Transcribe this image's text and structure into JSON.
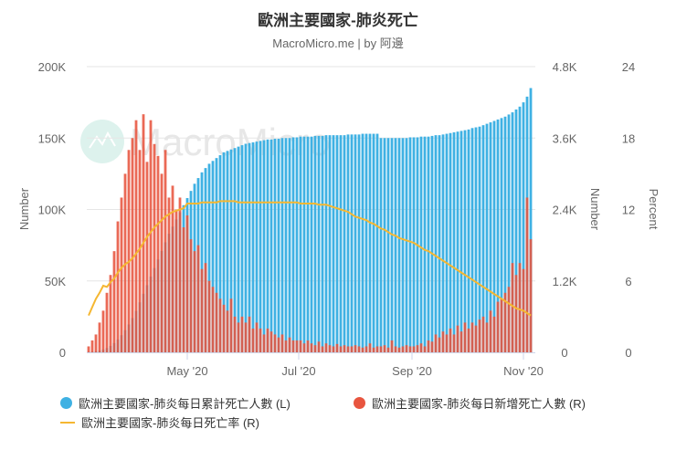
{
  "title": "歐洲主要國家-肺炎死亡",
  "subtitle": "MacroMicro.me | by 阿邊",
  "watermark": "MacroMicro",
  "chart_data": {
    "type": "bar+line",
    "title": "歐洲主要國家-肺炎死亡",
    "subtitle": "MacroMicro.me | by 阿邊",
    "grid": true,
    "legend_position": "bottom",
    "x_ticks": [
      {
        "date": "2020-05-01",
        "label": "May '20"
      },
      {
        "date": "2020-07-01",
        "label": "Jul '20"
      },
      {
        "date": "2020-09-01",
        "label": "Sep '20"
      },
      {
        "date": "2020-11-01",
        "label": "Nov '20"
      }
    ],
    "axes": {
      "left": {
        "label": "Number",
        "range": [
          0,
          200000
        ],
        "ticks": [
          "0",
          "50K",
          "100K",
          "150K",
          "200K"
        ]
      },
      "right_number": {
        "label": "Number",
        "range": [
          0,
          4800
        ],
        "ticks": [
          "0",
          "1.2K",
          "2.4K",
          "3.6K",
          "4.8K"
        ]
      },
      "right_percent": {
        "label": "Percent",
        "range": [
          0,
          24
        ],
        "ticks": [
          "0",
          "6",
          "12",
          "18",
          "24"
        ]
      }
    },
    "dates": [
      "2020-03-08",
      "2020-03-10",
      "2020-03-12",
      "2020-03-14",
      "2020-03-16",
      "2020-03-18",
      "2020-03-20",
      "2020-03-22",
      "2020-03-24",
      "2020-03-26",
      "2020-03-28",
      "2020-03-30",
      "2020-04-01",
      "2020-04-03",
      "2020-04-05",
      "2020-04-07",
      "2020-04-09",
      "2020-04-11",
      "2020-04-13",
      "2020-04-15",
      "2020-04-17",
      "2020-04-19",
      "2020-04-21",
      "2020-04-23",
      "2020-04-25",
      "2020-04-27",
      "2020-04-29",
      "2020-05-01",
      "2020-05-03",
      "2020-05-05",
      "2020-05-07",
      "2020-05-09",
      "2020-05-11",
      "2020-05-13",
      "2020-05-15",
      "2020-05-17",
      "2020-05-19",
      "2020-05-21",
      "2020-05-23",
      "2020-05-25",
      "2020-05-27",
      "2020-05-29",
      "2020-05-31",
      "2020-06-02",
      "2020-06-04",
      "2020-06-06",
      "2020-06-08",
      "2020-06-10",
      "2020-06-12",
      "2020-06-14",
      "2020-06-16",
      "2020-06-18",
      "2020-06-20",
      "2020-06-22",
      "2020-06-24",
      "2020-06-26",
      "2020-06-28",
      "2020-06-30",
      "2020-07-02",
      "2020-07-04",
      "2020-07-06",
      "2020-07-08",
      "2020-07-10",
      "2020-07-12",
      "2020-07-14",
      "2020-07-16",
      "2020-07-18",
      "2020-07-20",
      "2020-07-22",
      "2020-07-24",
      "2020-07-26",
      "2020-07-28",
      "2020-07-30",
      "2020-08-01",
      "2020-08-03",
      "2020-08-05",
      "2020-08-07",
      "2020-08-09",
      "2020-08-11",
      "2020-08-13",
      "2020-08-15",
      "2020-08-17",
      "2020-08-19",
      "2020-08-21",
      "2020-08-23",
      "2020-08-25",
      "2020-08-27",
      "2020-08-29",
      "2020-08-31",
      "2020-09-02",
      "2020-09-04",
      "2020-09-06",
      "2020-09-08",
      "2020-09-10",
      "2020-09-12",
      "2020-09-14",
      "2020-09-16",
      "2020-09-18",
      "2020-09-20",
      "2020-09-22",
      "2020-09-24",
      "2020-09-26",
      "2020-09-28",
      "2020-09-30",
      "2020-10-02",
      "2020-10-04",
      "2020-10-06",
      "2020-10-08",
      "2020-10-10",
      "2020-10-12",
      "2020-10-14",
      "2020-10-16",
      "2020-10-18",
      "2020-10-20",
      "2020-10-22",
      "2020-10-24",
      "2020-10-26",
      "2020-10-28",
      "2020-10-30",
      "2020-11-01",
      "2020-11-03",
      "2020-11-05"
    ],
    "series": [
      {
        "name": "歐洲主要國家-肺炎每日累計死亡人數 (L)",
        "type": "bar",
        "axis": "left",
        "color": "#3fb1e3",
        "values": [
          300,
          500,
          800,
          1300,
          2000,
          3000,
          4500,
          6500,
          9000,
          12000,
          15500,
          19500,
          24000,
          29000,
          35000,
          41000,
          47000,
          53000,
          59000,
          65000,
          71000,
          77000,
          83000,
          88000,
          93000,
          98000,
          103000,
          108000,
          113000,
          118000,
          122000,
          126000,
          129000,
          132000,
          134000,
          136000,
          138000,
          140000,
          141000,
          142000,
          143000,
          144000,
          145000,
          146000,
          146500,
          147000,
          147500,
          148000,
          148500,
          149000,
          149000,
          149500,
          149500,
          150000,
          150000,
          150000,
          150500,
          150500,
          151000,
          151000,
          151000,
          151000,
          151500,
          151500,
          151500,
          152000,
          152000,
          152000,
          152000,
          152000,
          152000,
          152500,
          152500,
          152500,
          152500,
          153000,
          153000,
          153000,
          153000,
          153000,
          150000,
          150000,
          150000,
          150000,
          150000,
          150000,
          150000,
          150000,
          150500,
          150500,
          150500,
          151000,
          151000,
          151000,
          151500,
          152000,
          152000,
          152500,
          153000,
          153500,
          154000,
          154500,
          155000,
          155500,
          156000,
          157000,
          157500,
          158000,
          159000,
          160000,
          161000,
          162000,
          163000,
          164000,
          165000,
          166500,
          168000,
          170000,
          172000,
          175000,
          179000,
          185000
        ]
      },
      {
        "name": "歐洲主要國家-肺炎每日新增死亡人數 (R)",
        "type": "bar",
        "axis": "right_number",
        "color": "#e8553f",
        "values": [
          100,
          200,
          300,
          500,
          700,
          1000,
          1300,
          1700,
          2200,
          2600,
          3000,
          3400,
          3600,
          3900,
          3400,
          4000,
          3200,
          3900,
          3500,
          3300,
          3000,
          3400,
          2600,
          2800,
          2400,
          2600,
          2100,
          2300,
          1900,
          1700,
          1800,
          1400,
          1500,
          1200,
          1100,
          1000,
          900,
          800,
          700,
          900,
          600,
          500,
          600,
          500,
          600,
          400,
          500,
          400,
          300,
          400,
          350,
          300,
          250,
          300,
          200,
          250,
          200,
          200,
          200,
          150,
          200,
          150,
          120,
          180,
          100,
          150,
          120,
          100,
          140,
          100,
          120,
          100,
          100,
          120,
          100,
          80,
          100,
          150,
          80,
          100,
          100,
          120,
          80,
          200,
          100,
          80,
          100,
          120,
          100,
          100,
          120,
          150,
          100,
          200,
          180,
          300,
          250,
          350,
          300,
          400,
          300,
          450,
          350,
          500,
          400,
          500,
          450,
          550,
          600,
          500,
          700,
          600,
          850,
          900,
          1000,
          1100,
          1500,
          1300,
          1500,
          1400,
          2600,
          1900
        ]
      },
      {
        "name": "歐洲主要國家-肺炎每日死亡率 (R)",
        "type": "line",
        "axis": "right_percent",
        "color": "#f5b731",
        "values": [
          3.1,
          3.8,
          4.5,
          5.0,
          5.6,
          5.5,
          5.9,
          6.2,
          6.7,
          7.1,
          7.4,
          7.6,
          7.9,
          8.3,
          8.7,
          9.2,
          9.7,
          10.1,
          10.5,
          10.8,
          11.1,
          11.4,
          11.6,
          11.8,
          11.9,
          12.0,
          12.1,
          12.5,
          12.5,
          12.5,
          12.5,
          12.6,
          12.6,
          12.6,
          12.6,
          12.6,
          12.7,
          12.7,
          12.7,
          12.7,
          12.7,
          12.6,
          12.6,
          12.6,
          12.6,
          12.6,
          12.6,
          12.6,
          12.6,
          12.6,
          12.6,
          12.6,
          12.6,
          12.6,
          12.6,
          12.6,
          12.6,
          12.6,
          12.5,
          12.5,
          12.5,
          12.5,
          12.5,
          12.4,
          12.4,
          12.4,
          12.3,
          12.2,
          12.1,
          12.0,
          11.9,
          11.8,
          11.6,
          11.4,
          11.3,
          11.2,
          11.1,
          10.9,
          10.8,
          10.6,
          10.4,
          10.3,
          10.1,
          9.9,
          9.8,
          9.6,
          9.5,
          9.4,
          9.3,
          9.2,
          9.0,
          8.8,
          8.6,
          8.5,
          8.3,
          8.1,
          7.9,
          7.7,
          7.5,
          7.3,
          7.1,
          6.9,
          6.7,
          6.5,
          6.3,
          6.1,
          5.9,
          5.7,
          5.5,
          5.3,
          5.1,
          4.9,
          4.7,
          4.5,
          4.3,
          4.1,
          3.9,
          3.7,
          3.6,
          3.5,
          3.3,
          3.1
        ]
      }
    ]
  }
}
